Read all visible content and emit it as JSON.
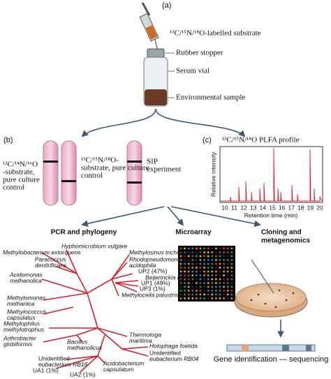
{
  "panel_a": {
    "label": "(a)",
    "substrate": "¹³C/¹⁵N/¹⁸O-labelled substrate",
    "stopper": "Rubber stopper",
    "vial": "Serum vial",
    "sample": "Environmental sample"
  },
  "panel_b": {
    "label": "(b)",
    "control_12": [
      "¹²C/¹⁴N/¹⁶O",
      "-substrate,",
      "pure culture",
      "control"
    ],
    "control_13": [
      "¹³C/¹⁵N/¹⁸O-",
      "substrate, pure culture",
      "control"
    ],
    "sip": [
      "SIP",
      "experiment"
    ]
  },
  "panel_c": {
    "label": "(c)",
    "title": "¹³C/¹⁵N/¹⁸O PLFA profile",
    "y_label": "Relative intensity",
    "x_label": "Retention time (min)",
    "x_ticks": [
      10,
      11,
      12,
      13,
      14,
      15,
      16,
      17,
      18,
      19,
      20
    ]
  },
  "methods": {
    "pcr": "PCR and phylogeny",
    "microarray": "Microarray",
    "cloning": [
      "Cloning and",
      "metagenomics"
    ]
  },
  "tree": {
    "taxa": [
      [
        "Hyphomicrobium vulgare"
      ],
      [
        "Methylobacterium extorquens"
      ],
      [
        "Methylosinus trichosporium"
      ],
      [
        "Paracoccus",
        "denitrificans"
      ],
      [
        "Rhodopseudomonas",
        "acidophila"
      ],
      [
        "Acidomonas",
        "methanolica"
      ],
      [
        "UP2 (47%)"
      ],
      [
        "Beijerinckia indica"
      ],
      [
        "UP1 (49%)"
      ],
      [
        "UP3 (1%)"
      ],
      [
        "Methylocella palustris"
      ],
      [
        "Methylomonas",
        "methanica"
      ],
      [
        "Methylococcus",
        "capsulatus"
      ],
      [
        "Methylophilus",
        "methylotrophus"
      ],
      [
        "Thermotoga",
        "maritima"
      ],
      [
        "Arthrobacter",
        "globiformis"
      ],
      [
        "Bacillus",
        "methanolicus"
      ],
      [
        "Holophaga foetida"
      ],
      [
        "Unidentified",
        "eubacterium RB04"
      ],
      [
        "Unidentified",
        "eubacterium RB16"
      ],
      [
        "UA1 (1%)"
      ],
      [
        "UA2 (1%)"
      ],
      [
        "Acidobacterium",
        "capsulatum"
      ]
    ]
  },
  "sequencing": "Gene identification — sequencing"
}
